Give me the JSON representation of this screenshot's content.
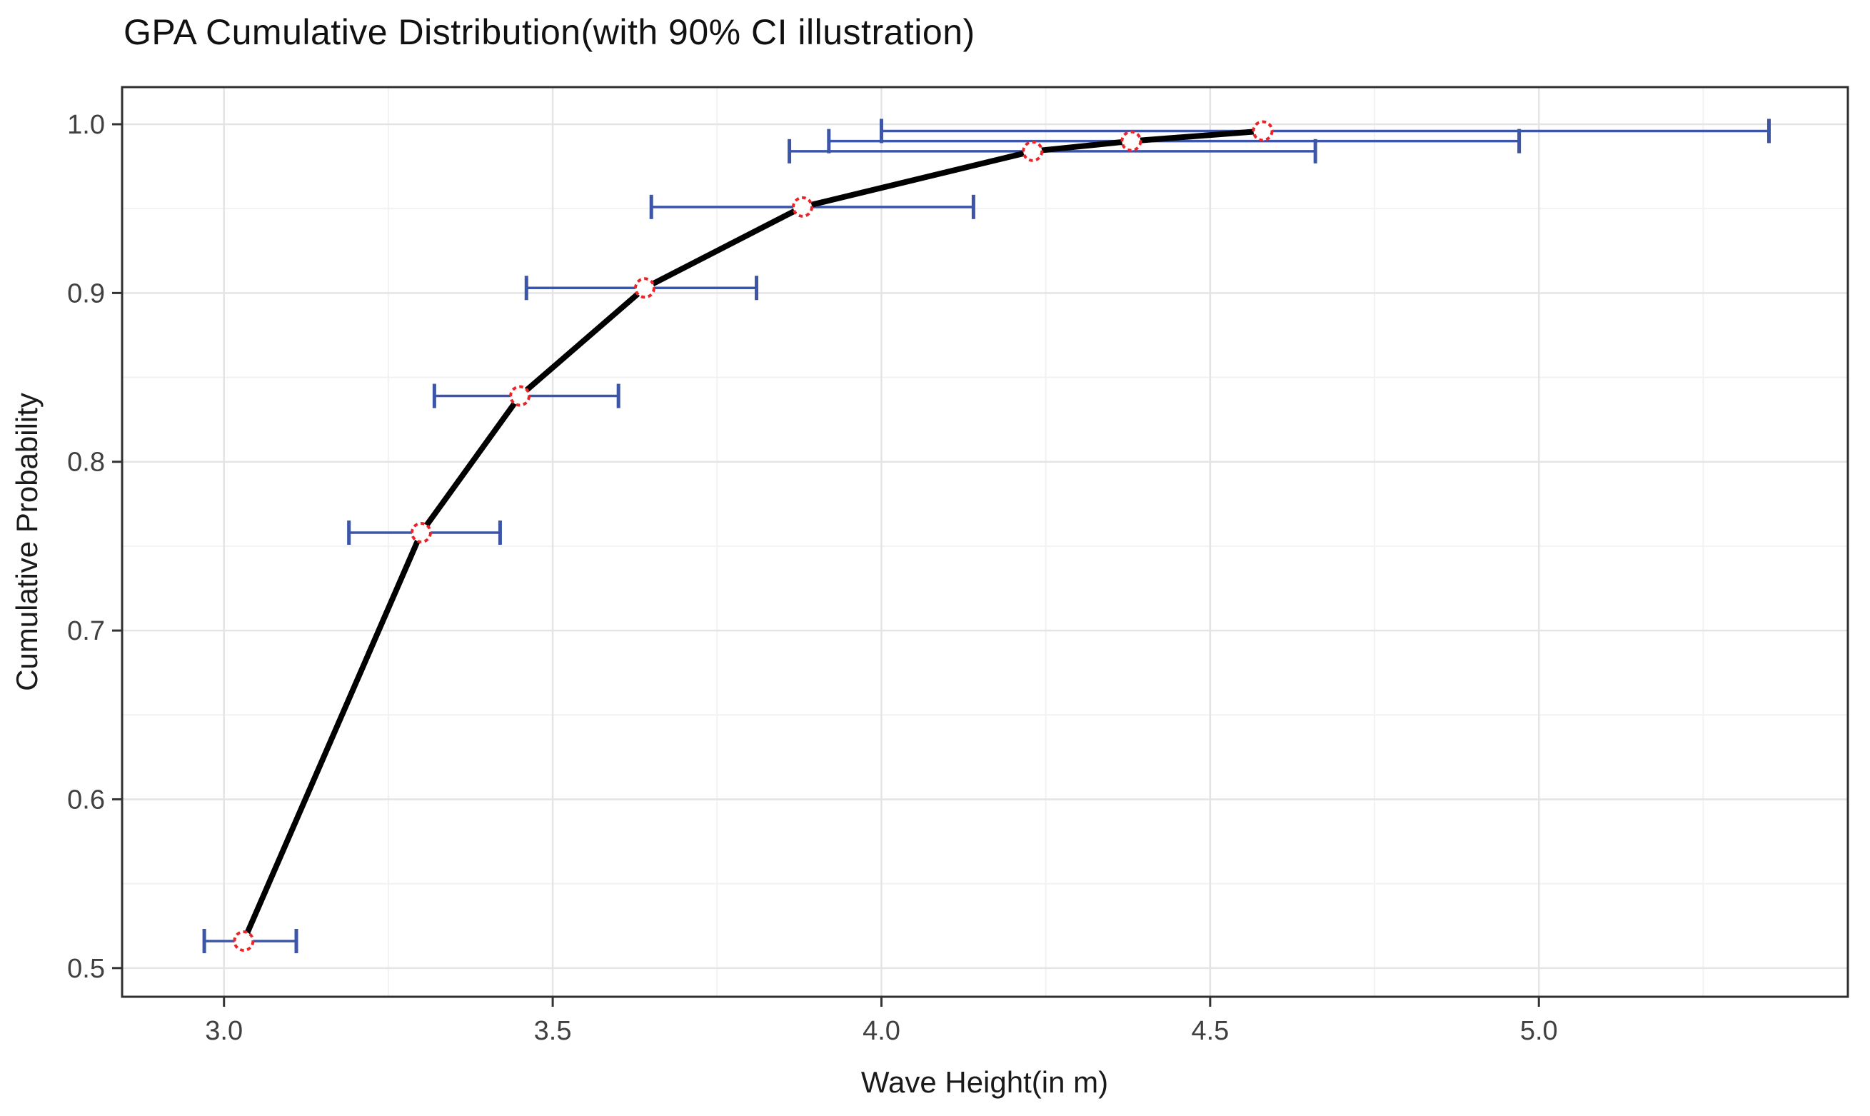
{
  "title": "GPA Cumulative Distribution(with 90% CI illustration)",
  "chart_data": {
    "type": "line",
    "title": "GPA Cumulative Distribution(with 90% CI illustration)",
    "xlabel": "Wave Height(in m)",
    "ylabel": "Cumulative Probability",
    "xlim": [
      2.845,
      5.47
    ],
    "ylim": [
      0.483,
      1.022
    ],
    "x_ticks": [
      3.0,
      3.5,
      4.0,
      4.5,
      5.0
    ],
    "x_tick_labels": [
      "3.0",
      "3.5",
      "4.0",
      "4.5",
      "5.0"
    ],
    "y_ticks": [
      0.5,
      0.6,
      0.7,
      0.8,
      0.9,
      1.0
    ],
    "y_tick_labels": [
      "0.5",
      "0.6",
      "0.7",
      "0.8",
      "0.9",
      "1.0"
    ],
    "x_minor_gridlines": [
      3.25,
      3.75,
      4.25,
      4.75,
      5.25
    ],
    "y_minor_gridlines": [
      0.55,
      0.65,
      0.75,
      0.85,
      0.95
    ],
    "grid": "major and minor, light gray on white panel, dark panel border",
    "legend": "none",
    "series": [
      {
        "name": "GPA cumulative distribution with 90% CI error bars",
        "points": [
          {
            "x": 3.03,
            "y": 0.516,
            "ci_low": 2.97,
            "ci_high": 3.11
          },
          {
            "x": 3.3,
            "y": 0.758,
            "ci_low": 3.19,
            "ci_high": 3.42
          },
          {
            "x": 3.45,
            "y": 0.839,
            "ci_low": 3.32,
            "ci_high": 3.6
          },
          {
            "x": 3.64,
            "y": 0.903,
            "ci_low": 3.46,
            "ci_high": 3.81
          },
          {
            "x": 3.88,
            "y": 0.951,
            "ci_low": 3.65,
            "ci_high": 4.14
          },
          {
            "x": 4.23,
            "y": 0.984,
            "ci_low": 3.86,
            "ci_high": 4.66
          },
          {
            "x": 4.38,
            "y": 0.99,
            "ci_low": 3.92,
            "ci_high": 4.97
          },
          {
            "x": 4.58,
            "y": 0.996,
            "ci_low": 4.0,
            "ci_high": 5.35
          }
        ]
      }
    ],
    "colors": {
      "line": "#000000",
      "point_stroke": "#ee2328",
      "point_fill": "#ffffff",
      "error_bar": "#3d55a7",
      "grid_major": "#e4e4e4",
      "grid_minor": "#f2f2f2",
      "panel_border": "#2f2f2f",
      "tick_mark": "#333333"
    }
  }
}
